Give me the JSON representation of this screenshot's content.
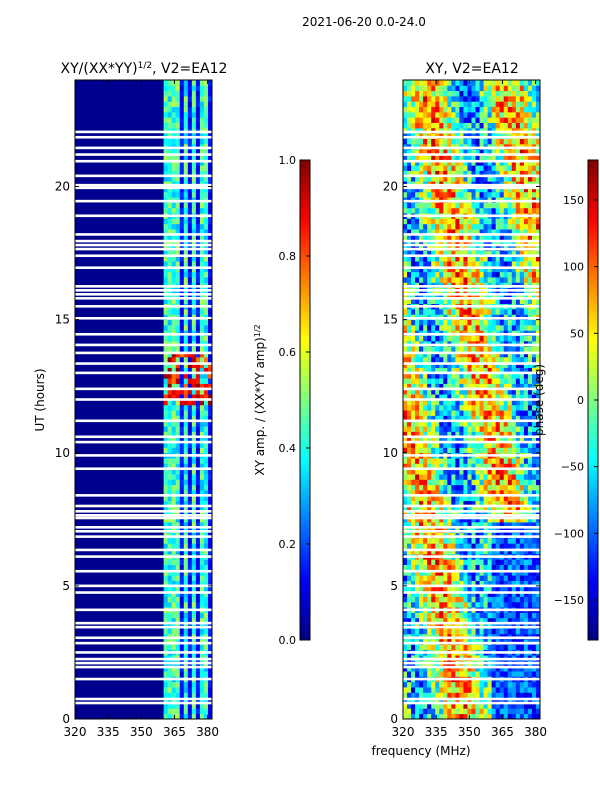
{
  "figure": {
    "suptitle": "2021-06-20 0.0-24.0",
    "xlabel": "frequency (MHz)"
  },
  "colors": {
    "jet": [
      "#00007f",
      "#0000ff",
      "#007fff",
      "#00ffff",
      "#7fff7f",
      "#ffff00",
      "#ff7f00",
      "#ff0000",
      "#7f0000"
    ],
    "gap": "#ffffff",
    "axis": "#000000"
  },
  "chart_data": [
    {
      "type": "heatmap",
      "title_main": "XY/(XX*YY)",
      "title_sup": "1/2",
      "title_tail": ", V2=EA12",
      "ylabel": "UT (hours)",
      "xlim": [
        320,
        382
      ],
      "ylim": [
        0,
        24
      ],
      "xticks": [
        320,
        335,
        350,
        365,
        380
      ],
      "yticks": [
        0,
        5,
        10,
        15,
        20
      ],
      "active_band_mhz": [
        361,
        382
      ],
      "channel_gaps_mhz": [
        367.5,
        372,
        376,
        380.5
      ],
      "strong_signal_hours": [
        [
          11.8,
          13.8
        ]
      ],
      "colorbar": {
        "label_main": "XY amp. / (XX*YY amp)",
        "label_sup": "1/2",
        "range": [
          0.0,
          1.0
        ],
        "ticks": [
          "0.0",
          "0.2",
          "0.4",
          "0.6",
          "0.8",
          "1.0"
        ]
      }
    },
    {
      "type": "heatmap",
      "title_main": "XY, V2=EA12",
      "xlim": [
        320,
        382
      ],
      "ylim": [
        0,
        24
      ],
      "xticks": [
        320,
        335,
        350,
        365,
        380
      ],
      "yticks": [
        0,
        5,
        10,
        15,
        20
      ],
      "colorbar": {
        "label_main": "phase (deg)",
        "range": [
          -180,
          180
        ],
        "ticks": [
          "−150",
          "−100",
          "−50",
          "0",
          "50",
          "100",
          "150"
        ]
      }
    }
  ],
  "data_gaps_hours": [
    0.6,
    0.75,
    1.5,
    1.95,
    2.1,
    2.25,
    2.5,
    2.85,
    3.05,
    3.45,
    3.6,
    4.1,
    4.75,
    5.0,
    5.55,
    6.1,
    6.35,
    6.85,
    7.05,
    7.2,
    7.55,
    7.65,
    7.8,
    8.0,
    8.4,
    9.4,
    9.9,
    10.4,
    10.6,
    11.2,
    12.0,
    12.4,
    13.0,
    13.35,
    13.75,
    14.05,
    14.45,
    15.05,
    15.5,
    15.8,
    15.95,
    16.1,
    16.25,
    16.95,
    17.4,
    17.65,
    17.8,
    17.95,
    18.2,
    18.9,
    19.45,
    19.95,
    20.05,
    20.4,
    20.95,
    21.2,
    21.45,
    21.85,
    22.05
  ]
}
